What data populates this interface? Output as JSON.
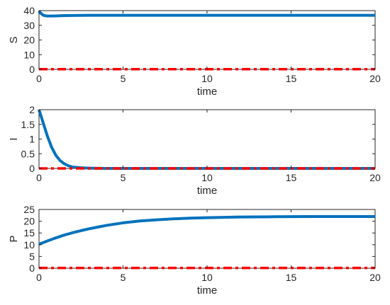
{
  "colors": {
    "primary_series": "#0072BD",
    "secondary_series": "#FF0000",
    "axis": "#262626"
  },
  "chart_data": [
    {
      "type": "line",
      "xlabel": "time",
      "ylabel": "S",
      "xlim": [
        0,
        20
      ],
      "ylim": [
        0,
        40
      ],
      "xticks": [
        0,
        5,
        10,
        15,
        20
      ],
      "yticks": [
        0,
        10,
        20,
        30,
        40
      ],
      "grid": false,
      "series": [
        {
          "style": "solid",
          "color": "#0072BD",
          "x": [
            0,
            0.1,
            0.2,
            0.3,
            0.5,
            0.7,
            1.0,
            1.5,
            2,
            3,
            5,
            10,
            15,
            20
          ],
          "y": [
            39.8,
            38.3,
            37.3,
            36.7,
            36.3,
            36.3,
            36.4,
            36.6,
            36.7,
            36.8,
            36.8,
            36.8,
            36.8,
            36.8
          ]
        },
        {
          "style": "dashdot",
          "color": "#FF0000",
          "x": [
            0,
            20
          ],
          "y": [
            0.1,
            0.1
          ]
        }
      ]
    },
    {
      "type": "line",
      "xlabel": "time",
      "ylabel": "I",
      "xlim": [
        0,
        20
      ],
      "ylim": [
        0,
        2
      ],
      "xticks": [
        0,
        5,
        10,
        15,
        20
      ],
      "yticks": [
        0,
        0.5,
        1,
        1.5,
        2
      ],
      "grid": false,
      "series": [
        {
          "style": "solid",
          "color": "#0072BD",
          "x": [
            0,
            0.25,
            0.5,
            0.75,
            1.0,
            1.25,
            1.5,
            1.75,
            2.0,
            2.5,
            3,
            4,
            6,
            10,
            15,
            20
          ],
          "y": [
            2.0,
            1.55,
            1.1,
            0.72,
            0.45,
            0.27,
            0.16,
            0.09,
            0.05,
            0.02,
            0.01,
            0.0,
            0.0,
            0.0,
            0.0,
            0.0
          ]
        },
        {
          "style": "dashdot",
          "color": "#FF0000",
          "x": [
            0,
            20
          ],
          "y": [
            0.0,
            0.0
          ]
        }
      ]
    },
    {
      "type": "line",
      "xlabel": "time",
      "ylabel": "P",
      "xlim": [
        0,
        20
      ],
      "ylim": [
        0,
        25
      ],
      "xticks": [
        0,
        5,
        10,
        15,
        20
      ],
      "yticks": [
        0,
        5,
        10,
        15,
        20,
        25
      ],
      "grid": false,
      "series": [
        {
          "style": "solid",
          "color": "#0072BD",
          "x": [
            0,
            0.5,
            1,
            1.5,
            2,
            2.5,
            3,
            3.5,
            4,
            5,
            6,
            7,
            8,
            9,
            10,
            12,
            14,
            16,
            18,
            20
          ],
          "y": [
            10.2,
            11.6,
            12.9,
            14.1,
            15.1,
            16.0,
            16.8,
            17.5,
            18.2,
            19.3,
            20.1,
            20.6,
            21.0,
            21.3,
            21.5,
            21.8,
            21.9,
            22.0,
            22.0,
            22.0
          ]
        },
        {
          "style": "dashdot",
          "color": "#FF0000",
          "x": [
            0,
            20
          ],
          "y": [
            0.1,
            0.1
          ]
        }
      ]
    }
  ]
}
